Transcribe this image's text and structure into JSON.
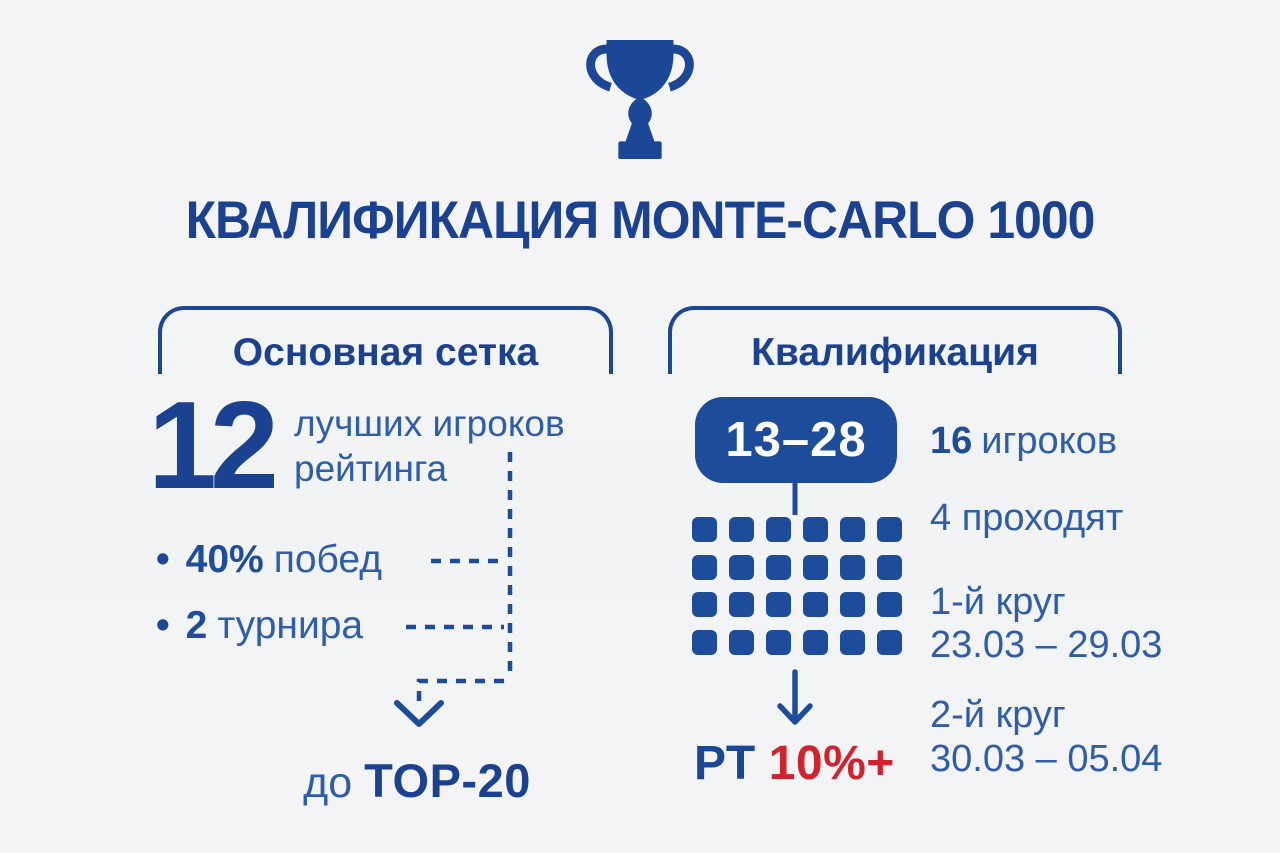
{
  "colors": {
    "primary_blue": "#1c4696",
    "body_blue": "#2e5dab",
    "accent_red": "#d0232e",
    "pill_fill": "#1c4c9a",
    "background": "#f3f4f6",
    "pill_text": "#ffffff"
  },
  "header": {
    "trophy_icon": "trophy-icon",
    "title": "КВАЛИФИКАЦИЯ MONTE-CARLO 1000"
  },
  "chart_data": {
    "type": "table",
    "title": "КВАЛИФИКАЦИЯ MONTE-CARLO 1000",
    "sections": [
      {
        "heading": "Основная сетка",
        "players": 12,
        "players_note": "лучших игроков рейтинга",
        "facts": [
          [
            "40%",
            "побед"
          ],
          [
            "2",
            "турнира"
          ]
        ],
        "outcome": "до TOP-20"
      },
      {
        "heading": "Квалификация",
        "seed_range": "13–28",
        "players": 16,
        "advance": 4,
        "round1": [
          "1-й круг",
          "23.03 – 29.03"
        ],
        "round2": [
          "2-й круг",
          "30.03 – 05.04"
        ],
        "rating_points": "РТ 10%+"
      }
    ]
  },
  "main_draw": {
    "heading": "Основная сетка",
    "players_count": "12",
    "players_label_line1": "лучших игроков",
    "players_label_line2": "рейтинга",
    "bullet_marker": "•",
    "bullets": [
      {
        "value": "40%",
        "label": "побед"
      },
      {
        "value": "2",
        "label": "турнира"
      }
    ],
    "outcome_prefix": "до",
    "outcome_value": "TOP-20"
  },
  "qualification": {
    "heading": "Квалификация",
    "seed_range": "13–28",
    "players_value": "16",
    "players_label": "игроков",
    "advance_text": "4 проходят",
    "rounds": [
      {
        "title": "1-й круг",
        "dates": "23.03 – 29.03"
      },
      {
        "title": "2-й круг",
        "dates": "30.03 – 05.04"
      }
    ],
    "points_label": "РТ",
    "points_value": "10%+",
    "grid_rows": 4,
    "grid_cols": 6
  }
}
